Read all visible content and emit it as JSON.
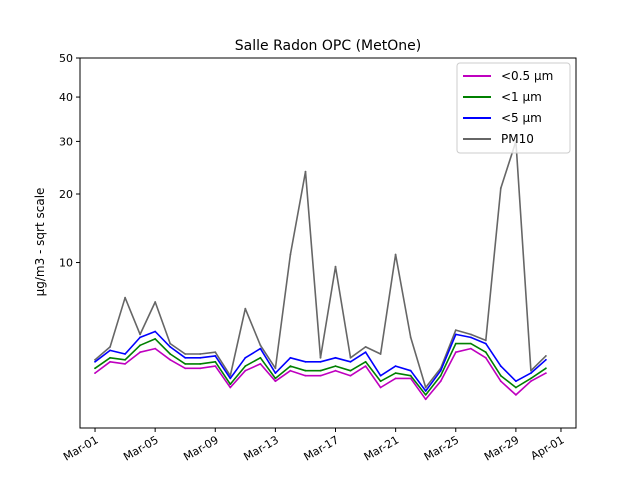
{
  "chart_data": {
    "type": "line",
    "title": "Salle Radon OPC (MetOne)",
    "ylabel": "µg/m3 - sqrt scale",
    "xlabel": "",
    "yscale": "sqrt",
    "ylim": [
      0,
      50
    ],
    "yticks": [
      10,
      20,
      30,
      40,
      50
    ],
    "xlim": [
      "2023-02-28",
      "2023-04-02"
    ],
    "xticks": [
      {
        "date": "2023-03-01",
        "label": "Mar-01"
      },
      {
        "date": "2023-03-05",
        "label": "Mar-05"
      },
      {
        "date": "2023-03-09",
        "label": "Mar-09"
      },
      {
        "date": "2023-03-13",
        "label": "Mar-13"
      },
      {
        "date": "2023-03-17",
        "label": "Mar-17"
      },
      {
        "date": "2023-03-21",
        "label": "Mar-21"
      },
      {
        "date": "2023-03-25",
        "label": "Mar-25"
      },
      {
        "date": "2023-03-29",
        "label": "Mar-29"
      },
      {
        "date": "2023-04-01",
        "label": "Apr-01"
      }
    ],
    "legend_position": "top-right",
    "x": [
      "2023-03-01",
      "2023-03-02",
      "2023-03-03",
      "2023-03-04",
      "2023-03-05",
      "2023-03-06",
      "2023-03-07",
      "2023-03-08",
      "2023-03-09",
      "2023-03-10",
      "2023-03-11",
      "2023-03-12",
      "2023-03-13",
      "2023-03-14",
      "2023-03-15",
      "2023-03-16",
      "2023-03-17",
      "2023-03-18",
      "2023-03-19",
      "2023-03-20",
      "2023-03-21",
      "2023-03-22",
      "2023-03-23",
      "2023-03-24",
      "2023-03-25",
      "2023-03-26",
      "2023-03-27",
      "2023-03-28",
      "2023-03-29",
      "2023-03-30",
      "2023-03-31"
    ],
    "series": [
      {
        "name": "<0.5 µm",
        "color": "#bf00bf",
        "values": [
          1.1,
          1.6,
          1.5,
          2.1,
          2.3,
          1.7,
          1.3,
          1.3,
          1.4,
          0.6,
          1.2,
          1.5,
          0.8,
          1.2,
          1.0,
          1.0,
          1.2,
          1.0,
          1.4,
          0.6,
          0.9,
          0.9,
          0.3,
          0.8,
          2.1,
          2.3,
          1.8,
          0.8,
          0.4,
          0.8,
          1.1
        ]
      },
      {
        "name": "<1 µm",
        "color": "#008000",
        "values": [
          1.3,
          1.8,
          1.7,
          2.5,
          2.9,
          2.0,
          1.5,
          1.5,
          1.6,
          0.7,
          1.4,
          1.8,
          0.9,
          1.4,
          1.2,
          1.2,
          1.4,
          1.2,
          1.6,
          0.8,
          1.1,
          1.0,
          0.4,
          1.0,
          2.6,
          2.6,
          2.1,
          1.0,
          0.6,
          0.9,
          1.3
        ]
      },
      {
        "name": "<5 µm",
        "color": "#0000ff",
        "values": [
          1.6,
          2.2,
          2.0,
          3.0,
          3.4,
          2.4,
          1.8,
          1.8,
          1.9,
          0.9,
          1.8,
          2.3,
          1.1,
          1.8,
          1.6,
          1.6,
          1.8,
          1.6,
          2.1,
          1.0,
          1.4,
          1.2,
          0.5,
          1.2,
          3.2,
          3.0,
          2.6,
          1.4,
          0.8,
          1.1,
          1.7
        ]
      },
      {
        "name": "PM10",
        "color": "#666666",
        "values": [
          1.7,
          2.4,
          6.2,
          3.2,
          5.8,
          2.6,
          2.0,
          2.0,
          2.1,
          1.0,
          5.2,
          2.5,
          1.3,
          11,
          24,
          1.8,
          9.5,
          1.8,
          2.4,
          2.0,
          11,
          3.0,
          0.6,
          1.3,
          3.5,
          3.2,
          2.8,
          21,
          30,
          1.2,
          1.9
        ]
      }
    ]
  }
}
